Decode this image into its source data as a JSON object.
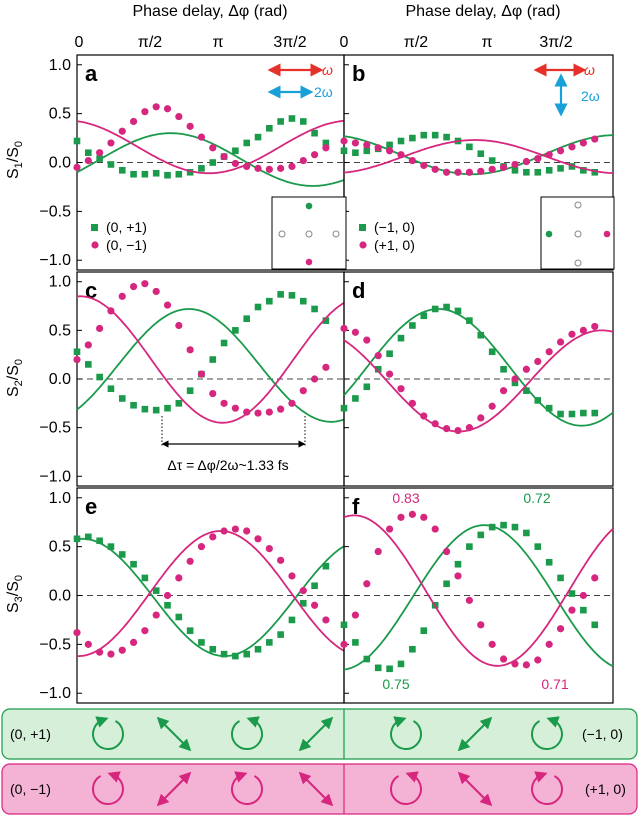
{
  "colors": {
    "green": "#1a9a4a",
    "magenta": "#d6267e",
    "red": "#e8302a",
    "blue": "#1aa0d8",
    "green_bg": "#d6efd9",
    "magenta_bg": "#f4b3d5"
  },
  "labels": {
    "top_axis_left": "Phase delay, Δφ (rad)",
    "top_axis_right": "Phase delay, Δφ (rad)",
    "top_ticks": [
      "0",
      "π/2",
      "π",
      "3π/2"
    ],
    "top_ticks_right": [
      "0",
      "π/2",
      "π",
      "3π/2"
    ],
    "ylabels": [
      "S1/S0",
      "S2/S0",
      "S3/S0"
    ],
    "letters": [
      "a",
      "b",
      "c",
      "d",
      "e",
      "f"
    ],
    "legend_a": [
      "(0, +1)",
      "(0, −1)"
    ],
    "legend_b": [
      "(−1, 0)",
      "(+1, 0)"
    ],
    "omega": "ω",
    "two_omega": "2ω",
    "dt": "Δτ = Δφ/2ω~1.33 fs",
    "f_annots": [
      "0.83",
      "0.72",
      "0.75",
      "0.71"
    ],
    "bottom_left_green": "(0, +1)",
    "bottom_right_green": "(−1, 0)",
    "bottom_left_magenta": "(0, −1)",
    "bottom_right_magenta": "(+1, 0)"
  },
  "chart_data": [
    {
      "panel": "a",
      "type": "scatter",
      "ylabel": "S1/S0",
      "ylim": [
        -1.1,
        1.1
      ],
      "xlim": [
        0,
        5.9
      ],
      "series": [
        {
          "name": "(0, +1)",
          "color": "green",
          "x": [
            0.0,
            0.25,
            0.5,
            0.75,
            1.0,
            1.25,
            1.5,
            1.75,
            2.0,
            2.25,
            2.5,
            2.75,
            3.0,
            3.25,
            3.5,
            3.75,
            4.0,
            4.25,
            4.5,
            4.75,
            5.0,
            5.25,
            5.5
          ],
          "y": [
            0.22,
            0.1,
            0.04,
            -0.02,
            -0.08,
            -0.12,
            -0.12,
            -0.11,
            -0.13,
            -0.12,
            -0.1,
            -0.06,
            0.0,
            0.06,
            0.12,
            0.2,
            0.26,
            0.35,
            0.42,
            0.45,
            0.42,
            0.3,
            0.2
          ],
          "fit": {
            "a": 0.03,
            "b": 0.27,
            "c": -0.5
          }
        },
        {
          "name": "(0, −1)",
          "color": "magenta",
          "x": [
            0.0,
            0.25,
            0.5,
            0.75,
            1.0,
            1.25,
            1.5,
            1.75,
            2.0,
            2.25,
            2.5,
            2.75,
            3.0,
            3.25,
            3.5,
            3.75,
            4.0,
            4.25,
            4.5,
            4.75,
            5.0,
            5.25,
            5.5
          ],
          "y": [
            -0.05,
            0.02,
            0.1,
            0.2,
            0.32,
            0.42,
            0.52,
            0.57,
            0.55,
            0.47,
            0.37,
            0.26,
            0.15,
            0.06,
            -0.01,
            -0.04,
            -0.06,
            -0.07,
            -0.06,
            -0.04,
            0.02,
            0.08,
            0.15
          ],
          "fit": {
            "a": 0.16,
            "b": 0.27,
            "c": 1.8
          }
        }
      ]
    },
    {
      "panel": "b",
      "type": "scatter",
      "ylabel": "",
      "ylim": [
        -1.1,
        1.1
      ],
      "xlim": [
        0,
        5.9
      ],
      "series": [
        {
          "name": "(−1, 0)",
          "color": "green",
          "x": [
            0.0,
            0.25,
            0.5,
            0.75,
            1.0,
            1.25,
            1.5,
            1.75,
            2.0,
            2.25,
            2.5,
            2.75,
            3.0,
            3.25,
            3.5,
            3.75,
            4.0,
            4.25,
            4.5,
            4.75,
            5.0,
            5.25,
            5.5
          ],
          "y": [
            0.12,
            0.1,
            0.12,
            0.14,
            0.18,
            0.22,
            0.25,
            0.28,
            0.28,
            0.26,
            0.22,
            0.16,
            0.09,
            0.02,
            -0.04,
            -0.08,
            -0.1,
            -0.1,
            -0.08,
            -0.06,
            -0.04,
            -0.08,
            -0.1
          ],
          "fit": {
            "a": 0.08,
            "b": 0.2,
            "c": 1.9
          }
        },
        {
          "name": "(+1, 0)",
          "color": "magenta",
          "x": [
            0.0,
            0.25,
            0.5,
            0.75,
            1.0,
            1.25,
            1.5,
            1.75,
            2.0,
            2.25,
            2.5,
            2.75,
            3.0,
            3.25,
            3.5,
            3.75,
            4.0,
            4.25,
            4.5,
            4.75,
            5.0,
            5.25,
            5.5
          ],
          "y": [
            0.22,
            0.2,
            0.18,
            0.15,
            0.12,
            0.08,
            0.02,
            -0.03,
            -0.07,
            -0.1,
            -0.1,
            -0.1,
            -0.09,
            -0.07,
            -0.05,
            -0.02,
            0.01,
            0.04,
            0.08,
            0.12,
            0.16,
            0.2,
            0.24
          ],
          "fit": {
            "a": 0.06,
            "b": 0.17,
            "c": -1.3
          }
        }
      ]
    },
    {
      "panel": "c",
      "type": "scatter",
      "ylabel": "S2/S0",
      "ylim": [
        -1.1,
        1.1
      ],
      "xlim": [
        0,
        5.9
      ],
      "series": [
        {
          "name": "(0, +1)",
          "color": "green",
          "x": [
            0.0,
            0.25,
            0.5,
            0.75,
            1.0,
            1.25,
            1.5,
            1.75,
            2.0,
            2.25,
            2.5,
            2.75,
            3.0,
            3.25,
            3.5,
            3.75,
            4.0,
            4.25,
            4.5,
            4.75,
            5.0,
            5.25,
            5.5
          ],
          "y": [
            0.28,
            0.15,
            0.02,
            -0.1,
            -0.2,
            -0.27,
            -0.31,
            -0.32,
            -0.3,
            -0.25,
            -0.12,
            0.05,
            0.2,
            0.37,
            0.5,
            0.62,
            0.74,
            0.8,
            0.87,
            0.86,
            0.8,
            0.72,
            0.6
          ],
          "fit": {
            "a": 0.14,
            "b": 0.58,
            "c": -0.9
          }
        },
        {
          "name": "(0, −1)",
          "color": "magenta",
          "x": [
            0.0,
            0.25,
            0.5,
            0.75,
            1.0,
            1.25,
            1.5,
            1.75,
            2.0,
            2.25,
            2.5,
            2.75,
            3.0,
            3.25,
            3.5,
            3.75,
            4.0,
            4.25,
            4.5,
            4.75,
            5.0,
            5.25,
            5.5
          ],
          "y": [
            0.2,
            0.35,
            0.52,
            0.7,
            0.85,
            0.95,
            0.98,
            0.9,
            0.76,
            0.55,
            0.3,
            0.05,
            -0.15,
            -0.25,
            -0.3,
            -0.34,
            -0.35,
            -0.34,
            -0.31,
            -0.25,
            -0.12,
            0.0,
            0.12
          ],
          "fit": {
            "a": 0.2,
            "b": 0.65,
            "c": 1.5
          }
        }
      ]
    },
    {
      "panel": "d",
      "type": "scatter",
      "ylabel": "",
      "ylim": [
        -1.1,
        1.1
      ],
      "xlim": [
        0,
        5.9
      ],
      "series": [
        {
          "name": "(−1, 0)",
          "color": "green",
          "x": [
            0.0,
            0.25,
            0.5,
            0.75,
            1.0,
            1.25,
            1.5,
            1.75,
            2.0,
            2.25,
            2.5,
            2.75,
            3.0,
            3.25,
            3.5,
            3.75,
            4.0,
            4.25,
            4.5,
            4.75,
            5.0,
            5.25,
            5.5
          ],
          "y": [
            -0.3,
            -0.2,
            -0.08,
            0.1,
            0.26,
            0.42,
            0.55,
            0.65,
            0.72,
            0.74,
            0.7,
            0.6,
            0.45,
            0.28,
            0.1,
            -0.04,
            -0.12,
            -0.22,
            -0.3,
            -0.36,
            -0.36,
            -0.35,
            -0.35
          ],
          "fit": {
            "a": 0.12,
            "b": 0.6,
            "c": -0.5
          }
        },
        {
          "name": "(+1, 0)",
          "color": "magenta",
          "x": [
            0.0,
            0.25,
            0.5,
            0.75,
            1.0,
            1.25,
            1.5,
            1.75,
            2.0,
            2.25,
            2.5,
            2.75,
            3.0,
            3.25,
            3.5,
            3.75,
            4.0,
            4.25,
            4.5,
            4.75,
            5.0,
            5.25,
            5.5
          ],
          "y": [
            0.52,
            0.48,
            0.4,
            0.24,
            0.05,
            -0.1,
            -0.25,
            -0.38,
            -0.46,
            -0.51,
            -0.53,
            -0.5,
            -0.4,
            -0.28,
            -0.12,
            0.0,
            0.1,
            0.18,
            0.28,
            0.38,
            0.46,
            0.5,
            0.54
          ],
          "fit": {
            "a": -0.02,
            "b": 0.52,
            "c": 2.2
          }
        }
      ]
    },
    {
      "panel": "e",
      "type": "scatter",
      "ylabel": "S3/S0",
      "ylim": [
        -1.1,
        1.1
      ],
      "xlim": [
        0,
        5.9
      ],
      "series": [
        {
          "name": "(0, +1)",
          "color": "green",
          "x": [
            0.0,
            0.25,
            0.5,
            0.75,
            1.0,
            1.25,
            1.5,
            1.75,
            2.0,
            2.25,
            2.5,
            2.75,
            3.0,
            3.25,
            3.5,
            3.75,
            4.0,
            4.25,
            4.5,
            4.75,
            5.0,
            5.25,
            5.5
          ],
          "y": [
            0.58,
            0.6,
            0.56,
            0.5,
            0.42,
            0.32,
            0.18,
            0.05,
            -0.1,
            -0.22,
            -0.36,
            -0.48,
            -0.55,
            -0.6,
            -0.62,
            -0.6,
            -0.55,
            -0.48,
            -0.4,
            -0.25,
            -0.08,
            0.1,
            0.3
          ],
          "fit": {
            "a": -0.02,
            "b": 0.6,
            "c": 1.45
          }
        },
        {
          "name": "(0, −1)",
          "color": "magenta",
          "x": [
            0.0,
            0.25,
            0.5,
            0.75,
            1.0,
            1.25,
            1.5,
            1.75,
            2.0,
            2.25,
            2.5,
            2.75,
            3.0,
            3.25,
            3.5,
            3.75,
            4.0,
            4.25,
            4.5,
            4.75,
            5.0,
            5.25,
            5.5
          ],
          "y": [
            -0.38,
            -0.5,
            -0.58,
            -0.6,
            -0.56,
            -0.48,
            -0.36,
            -0.2,
            0.0,
            0.18,
            0.35,
            0.5,
            0.6,
            0.66,
            0.68,
            0.66,
            0.58,
            0.48,
            0.36,
            0.2,
            0.05,
            -0.1,
            -0.25
          ],
          "fit": {
            "a": 0.02,
            "b": 0.64,
            "c": -1.6
          }
        }
      ]
    },
    {
      "panel": "f",
      "type": "scatter",
      "ylabel": "",
      "ylim": [
        -1.1,
        1.1
      ],
      "xlim": [
        0,
        5.9
      ],
      "series": [
        {
          "name": "(−1, 0)",
          "color": "green",
          "x": [
            0.0,
            0.25,
            0.5,
            0.75,
            1.0,
            1.25,
            1.5,
            1.75,
            2.0,
            2.25,
            2.5,
            2.75,
            3.0,
            3.25,
            3.5,
            3.75,
            4.0,
            4.25,
            4.5,
            4.75,
            5.0,
            5.25,
            5.5
          ],
          "y": [
            -0.3,
            -0.48,
            -0.65,
            -0.74,
            -0.75,
            -0.7,
            -0.55,
            -0.36,
            -0.1,
            0.12,
            0.32,
            0.5,
            0.62,
            0.7,
            0.72,
            0.7,
            0.64,
            0.5,
            0.34,
            0.18,
            0.02,
            -0.15,
            -0.3
          ],
          "fit": {
            "a": -0.02,
            "b": 0.74,
            "c": -1.5
          }
        },
        {
          "name": "(+1, 0)",
          "color": "magenta",
          "x": [
            0.0,
            0.25,
            0.5,
            0.75,
            1.0,
            1.25,
            1.5,
            1.75,
            2.0,
            2.25,
            2.5,
            2.75,
            3.0,
            3.25,
            3.5,
            3.75,
            4.0,
            4.25,
            4.5,
            4.75,
            5.0,
            5.25,
            5.5
          ],
          "y": [
            -0.5,
            -0.2,
            0.12,
            0.45,
            0.68,
            0.8,
            0.83,
            0.8,
            0.68,
            0.45,
            0.2,
            -0.05,
            -0.3,
            -0.5,
            -0.65,
            -0.7,
            -0.71,
            -0.66,
            -0.5,
            -0.34,
            -0.15,
            0.0,
            0.18
          ],
          "fit": {
            "a": 0.05,
            "b": 0.77,
            "c": 1.35
          }
        }
      ]
    }
  ]
}
